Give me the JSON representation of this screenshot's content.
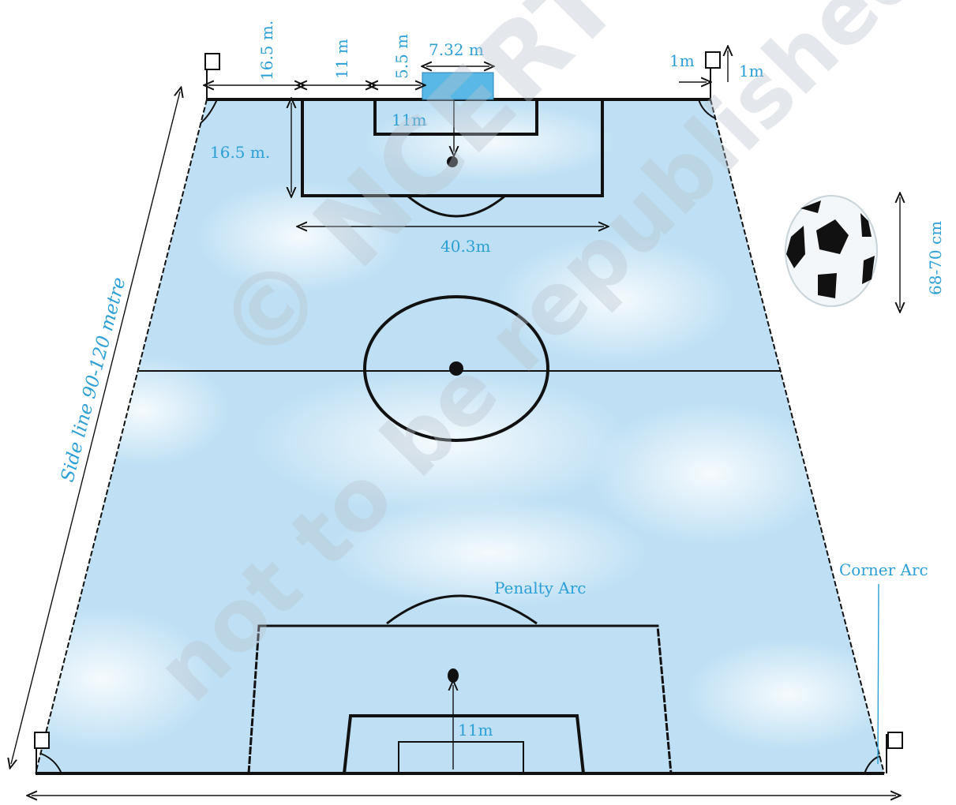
{
  "labels": {
    "top_dim_16_5": "16.5 m.",
    "top_dim_11": "11 m",
    "top_dim_5_5": "5.5 m",
    "goal_width": "7.32 m",
    "corner_offset_h": "1m",
    "corner_offset_v": "1m",
    "top_penalty_mark": "11m",
    "penalty_area_depth": "16.5 m.",
    "penalty_area_width": "40.3m",
    "side_line": "Side line 90-120 metre",
    "ball_size": "68-70 cm",
    "corner_arc": "Corner Arc",
    "penalty_arc": "Penalty Arc",
    "bottom_penalty_mark": "11m"
  },
  "watermark": {
    "line1": "© NCERT",
    "line2": "not to be republished"
  },
  "colors": {
    "label": "#2b9fd6",
    "field_fill": "#bfe0f4",
    "field_fill_light": "#e4f2fb",
    "line": "#111111",
    "goal": "#5ab8e6",
    "watermark": "#b8c2cc"
  },
  "icons": {
    "ball": "soccer-ball-icon",
    "corner_flag": "corner-flag-icon"
  }
}
